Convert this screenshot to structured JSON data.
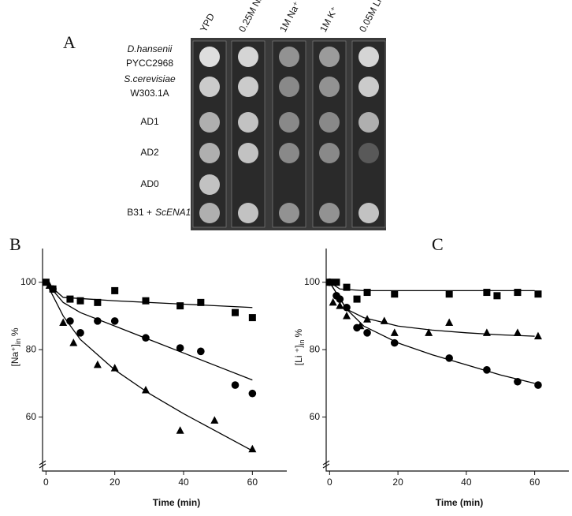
{
  "panel_a": {
    "label": "A",
    "columns": [
      "YPD",
      "0.25M Na⁺",
      "1M Na⁺",
      "1M K⁺",
      "0.05M Li⁺"
    ],
    "rows": [
      {
        "name": "D.hansenii",
        "strain": "PYCC2968"
      },
      {
        "name": "S.cerevisiae",
        "strain": "W303.1A"
      },
      {
        "strain": "AD1"
      },
      {
        "strain": "AD2"
      },
      {
        "strain": "AD0"
      },
      {
        "strain": "B31 +",
        "gene": "ScENA1"
      }
    ]
  },
  "chart_data": [
    {
      "type": "scatter",
      "panel_label": "B",
      "x_label": "Time (min)",
      "y_label": {
        "main": "[Na⁺]",
        "sub": "in",
        "suffix": "%"
      },
      "xlim": [
        -1,
        70
      ],
      "xticks": [
        0,
        20,
        40,
        60
      ],
      "ylim": [
        44,
        110
      ],
      "yticks": [
        60,
        80,
        100
      ],
      "series": [
        {
          "marker": "square",
          "color": "#000000",
          "x": [
            0,
            2,
            7,
            10,
            15,
            20,
            29,
            39,
            45,
            55,
            60
          ],
          "values": [
            100,
            98,
            95,
            94.5,
            94,
            97.5,
            94.5,
            93,
            94,
            91,
            89.5
          ],
          "fit": {
            "x": [
              0,
              5,
              20,
              40,
              60
            ],
            "values": [
              100,
              95.5,
              94.5,
              93.5,
              92.5
            ]
          }
        },
        {
          "marker": "circle",
          "color": "#000000",
          "x": [
            2,
            7,
            10,
            15,
            20,
            29,
            39,
            45,
            55,
            60
          ],
          "values": [
            98,
            88.5,
            85,
            88.5,
            88.5,
            83.5,
            80.5,
            79.5,
            69.5,
            67
          ],
          "fit": {
            "x": [
              0,
              5,
              10,
              20,
              30,
              40,
              50,
              60
            ],
            "values": [
              100,
              94,
              91,
              87,
              83,
              79,
              75,
              71
            ]
          }
        },
        {
          "marker": "triangle",
          "color": "#000000",
          "x": [
            1,
            5,
            8,
            15,
            20,
            29,
            39,
            49,
            60
          ],
          "values": [
            99,
            88,
            82,
            75.5,
            74.5,
            68,
            56,
            59,
            50.5
          ],
          "fit": {
            "x": [
              0,
              5,
              10,
              20,
              30,
              40,
              50,
              60
            ],
            "values": [
              100,
              90,
              83,
              74,
              67,
              61,
              55.5,
              50
            ]
          }
        }
      ]
    },
    {
      "type": "scatter",
      "panel_label": "C",
      "x_label": "Time (min)",
      "y_label": {
        "main": "[Li ⁺]",
        "sub": "in",
        "suffix": "%"
      },
      "xlim": [
        -1,
        70
      ],
      "xticks": [
        0,
        20,
        40,
        60
      ],
      "ylim": [
        44,
        110
      ],
      "yticks": [
        60,
        80,
        100
      ],
      "series": [
        {
          "marker": "square",
          "color": "#000000",
          "x": [
            0,
            2,
            5,
            8,
            11,
            19,
            35,
            46,
            49,
            55,
            61
          ],
          "values": [
            100,
            100,
            98.5,
            95,
            97,
            96.5,
            96.5,
            97,
            96,
            97,
            96.5
          ],
          "fit": {
            "x": [
              0,
              3,
              10,
              60
            ],
            "values": [
              100,
              98,
              97.5,
              97.5
            ]
          }
        },
        {
          "marker": "triangle",
          "color": "#000000",
          "x": [
            1,
            3,
            5,
            9,
            11,
            16,
            19,
            29,
            35,
            46,
            55,
            61
          ],
          "values": [
            94,
            93,
            90,
            87,
            89,
            88.5,
            85,
            85,
            88,
            85,
            85,
            84
          ],
          "fit": {
            "x": [
              0,
              5,
              10,
              20,
              30,
              40,
              50,
              60
            ],
            "values": [
              100,
              92,
              89.5,
              87,
              85.8,
              85,
              84.4,
              84
            ]
          }
        },
        {
          "marker": "circle",
          "color": "#000000",
          "x": [
            0,
            2,
            3,
            5,
            8,
            11,
            19,
            35,
            46,
            55,
            61
          ],
          "values": [
            100,
            96,
            95,
            92.5,
            86.5,
            85,
            82,
            77.5,
            74,
            70.5,
            69.5
          ],
          "fit": {
            "x": [
              0,
              5,
              10,
              20,
              30,
              40,
              50,
              60
            ],
            "values": [
              100,
              92,
              87,
              82,
              78.5,
              75.5,
              72.5,
              70
            ]
          }
        }
      ]
    }
  ]
}
